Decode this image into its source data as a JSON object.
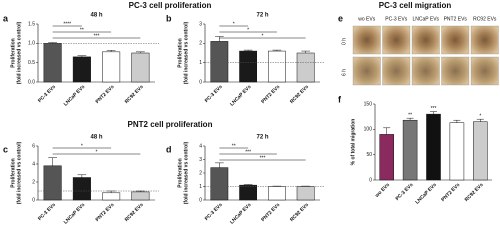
{
  "figure": {
    "headers": [
      "PC-3 cell proliferation",
      "PNT2 cell proliferation",
      "PC-3 cell migration"
    ],
    "migration_images": {
      "letter": "e",
      "columns": [
        "wo EVs",
        "PC-3 EVs",
        "LNCaP EVs",
        "PNT2 EVs",
        "RC92 EVs"
      ],
      "rows": [
        "0 h",
        "6 h"
      ]
    }
  },
  "chart_data": [
    {
      "type": "bar",
      "letter": "a",
      "title": "48 h",
      "ylabel": [
        "Proliferation",
        "(fold increased vs control)"
      ],
      "categories": [
        "PC-3 EVs",
        "LNCaP EVs",
        "PNT2 EVs",
        "RC92 EVs"
      ],
      "values": [
        1.0,
        0.65,
        0.78,
        0.75
      ],
      "errors": [
        0.02,
        0.03,
        0.04,
        0.03
      ],
      "colors": [
        "#555555",
        "#1a1a1a",
        "#ffffff",
        "#cccccc"
      ],
      "ylim": [
        0,
        1.5
      ],
      "yticks": [
        {
          "value": 0,
          "label": "0.0"
        },
        0.5,
        {
          "value": 1,
          "label": "1.0"
        },
        1.5
      ],
      "hline": 1,
      "significance": [
        {
          "label": "****",
          "from": 0,
          "to": 1
        },
        {
          "label": "**",
          "from": 0,
          "to": 2
        },
        {
          "label": "***",
          "from": 0,
          "to": 3
        }
      ]
    },
    {
      "type": "bar",
      "letter": "b",
      "title": "72 h",
      "ylabel": [
        "Proliferation",
        "(fold increased vs control)"
      ],
      "categories": [
        "PC-3 EVs",
        "LNCaP EVs",
        "PNT2 EVs",
        "RC92 EVs"
      ],
      "values": [
        2.1,
        1.6,
        1.6,
        1.5
      ],
      "errors": [
        0.25,
        0.05,
        0.05,
        0.1
      ],
      "colors": [
        "#555555",
        "#1a1a1a",
        "#ffffff",
        "#cccccc"
      ],
      "ylim": [
        0,
        3
      ],
      "yticks": [
        0,
        1,
        2,
        3
      ],
      "hline": 1,
      "significance": [
        {
          "label": "*",
          "from": 0,
          "to": 1
        },
        {
          "label": "*",
          "from": 0,
          "to": 2
        },
        {
          "label": "*",
          "from": 0,
          "to": 3
        }
      ]
    },
    {
      "type": "bar",
      "letter": "c",
      "title": "48 h",
      "ylabel": [
        "Proliferation",
        "(fold increased vs control)"
      ],
      "categories": [
        "PC-3 EVs",
        "LNCaP EVs",
        "PNT2 EVs",
        "RC92 EVs"
      ],
      "values": [
        3.8,
        2.5,
        0.8,
        0.9
      ],
      "errors": [
        0.9,
        0.3,
        0.2,
        0.1
      ],
      "colors": [
        "#555555",
        "#1a1a1a",
        "#ffffff",
        "#cccccc"
      ],
      "ylim": [
        0,
        6
      ],
      "yticks": [
        0,
        2,
        4,
        6
      ],
      "hline": 1,
      "significance": [
        {
          "label": "*",
          "from": 0,
          "to": 2
        },
        {
          "label": "*",
          "from": 0,
          "to": 3
        }
      ]
    },
    {
      "type": "bar",
      "letter": "d",
      "title": "72 h",
      "ylabel": [
        "Proliferation",
        "(fold increased vs control)"
      ],
      "categories": [
        "PC-3 EVs",
        "LNCaP EVs",
        "PNT2 EVs",
        "RC92 EVs"
      ],
      "values": [
        2.4,
        1.1,
        1.0,
        1.0
      ],
      "errors": [
        0.35,
        0.05,
        0.03,
        0.03
      ],
      "colors": [
        "#555555",
        "#1a1a1a",
        "#ffffff",
        "#cccccc"
      ],
      "ylim": [
        0,
        4
      ],
      "yticks": [
        0,
        1,
        2,
        3,
        4
      ],
      "hline": 1,
      "significance": [
        {
          "label": "**",
          "from": 0,
          "to": 1
        },
        {
          "label": "***",
          "from": 0,
          "to": 2
        },
        {
          "label": "***",
          "from": 0,
          "to": 3
        }
      ]
    },
    {
      "type": "bar",
      "letter": "f",
      "ylabel": [
        "% of total migration"
      ],
      "categories": [
        "wo EVs",
        "PC-3 EVs",
        "LNCaP EVs",
        "PNT2 EVs",
        "RC92 EVs"
      ],
      "values": [
        90,
        118,
        130,
        113,
        115
      ],
      "errors": [
        13,
        4,
        5,
        5,
        5
      ],
      "colors": [
        "#8b2a5e",
        "#777777",
        "#111111",
        "#ffffff",
        "#cccccc"
      ],
      "ylim": [
        0,
        150
      ],
      "yticks": [
        0,
        50,
        100,
        150
      ],
      "bar_stars": [
        null,
        "**",
        "***",
        null,
        "*"
      ]
    }
  ]
}
